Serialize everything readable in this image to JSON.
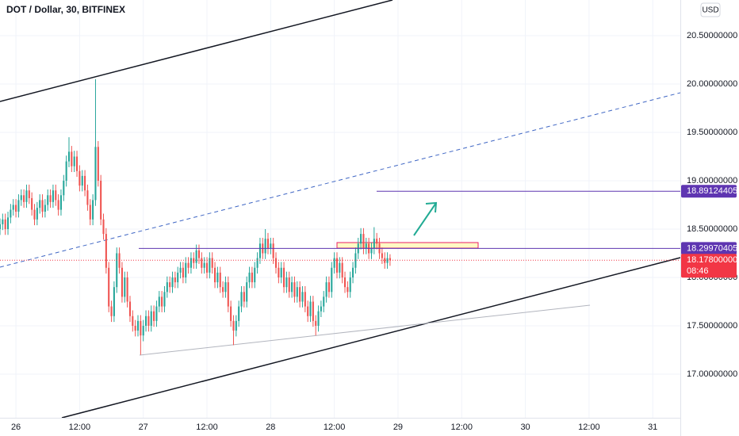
{
  "chart_data": {
    "type": "candlestick",
    "title": "DOT / Dollar, 30, BITFINEX",
    "currency": "USD",
    "countdown": "08:46",
    "up_color": "#26a69a",
    "down_color": "#ef5350",
    "grid": true,
    "xlim": [
      0,
      256.4
    ],
    "ylim": [
      16.549,
      20.869
    ],
    "xticks": [
      {
        "value": 6,
        "label": "26"
      },
      {
        "value": 30,
        "label": "12:00"
      },
      {
        "value": 54,
        "label": "27"
      },
      {
        "value": 78,
        "label": "12:00"
      },
      {
        "value": 102,
        "label": "28"
      },
      {
        "value": 126,
        "label": "12:00"
      },
      {
        "value": 150,
        "label": "29"
      },
      {
        "value": 174,
        "label": "12:00"
      },
      {
        "value": 198,
        "label": "30"
      },
      {
        "value": 222,
        "label": "12:00"
      },
      {
        "value": 246,
        "label": "31"
      }
    ],
    "yticks": [
      {
        "value": 17,
        "label": "17.00000000"
      },
      {
        "value": 17.5,
        "label": "17.50000000"
      },
      {
        "value": 18,
        "label": "18.00000000"
      },
      {
        "value": 18.5,
        "label": "18.50000000"
      },
      {
        "value": 19,
        "label": "19.00000000"
      },
      {
        "value": 19.5,
        "label": "19.50000000"
      },
      {
        "value": 20,
        "label": "20.00000000"
      },
      {
        "value": 20.5,
        "label": "20.50000000"
      }
    ],
    "price_labels": [
      {
        "value": 18.89124405,
        "color": "#5e35b1"
      },
      {
        "value": 18.29970405,
        "color": "#5e35b1"
      },
      {
        "value": 18.178,
        "label": "18.17800000",
        "color": "#f23645"
      }
    ],
    "x": [
      0,
      1,
      2,
      3,
      4,
      5,
      6,
      7,
      8,
      9,
      10,
      11,
      12,
      13,
      14,
      15,
      16,
      17,
      18,
      19,
      20,
      21,
      22,
      23,
      24,
      25,
      26,
      27,
      28,
      29,
      30,
      31,
      32,
      33,
      34,
      35,
      36,
      37,
      38,
      39,
      40,
      41,
      42,
      43,
      44,
      45,
      46,
      47,
      48,
      49,
      50,
      51,
      52,
      53,
      54,
      55,
      56,
      57,
      58,
      59,
      60,
      61,
      62,
      63,
      64,
      65,
      66,
      67,
      68,
      69,
      70,
      71,
      72,
      73,
      74,
      75,
      76,
      77,
      78,
      79,
      80,
      81,
      82,
      83,
      84,
      85,
      86,
      87,
      88,
      89,
      90,
      91,
      92,
      93,
      94,
      95,
      96,
      97,
      98,
      99,
      100,
      101,
      102,
      103,
      104,
      105,
      106,
      107,
      108,
      109,
      110,
      111,
      112,
      113,
      114,
      115,
      116,
      117,
      118,
      119,
      120,
      121,
      122,
      123,
      124,
      125,
      126,
      127,
      128,
      129,
      130,
      131,
      132,
      133,
      134,
      135,
      136,
      137,
      138,
      139,
      140,
      141,
      142,
      143,
      144,
      145,
      146,
      147
    ],
    "open": [
      18.5,
      18.55,
      18.6,
      18.5,
      18.62,
      18.7,
      18.75,
      18.68,
      18.8,
      18.85,
      18.78,
      18.9,
      18.82,
      18.7,
      18.6,
      18.72,
      18.8,
      18.68,
      18.75,
      18.85,
      18.78,
      18.9,
      18.8,
      18.7,
      18.85,
      19.0,
      19.2,
      19.3,
      19.15,
      19.25,
      19.1,
      18.95,
      19.05,
      18.9,
      18.75,
      18.6,
      18.8,
      19.35,
      19.0,
      18.6,
      18.45,
      18.1,
      17.7,
      17.6,
      17.9,
      18.25,
      18.1,
      17.8,
      18.0,
      17.75,
      17.6,
      17.5,
      17.45,
      17.55,
      17.4,
      17.5,
      17.6,
      17.5,
      17.65,
      17.55,
      17.7,
      17.8,
      17.7,
      17.85,
      17.95,
      17.9,
      18.0,
      17.95,
      18.05,
      18.1,
      18.0,
      18.15,
      18.1,
      18.2,
      18.15,
      18.28,
      18.2,
      18.1,
      18.15,
      18.05,
      18.2,
      18.1,
      17.95,
      18.05,
      17.9,
      17.85,
      17.95,
      17.7,
      17.55,
      17.45,
      17.55,
      17.7,
      17.85,
      17.75,
      17.95,
      18.05,
      17.95,
      18.1,
      18.2,
      18.35,
      18.25,
      18.4,
      18.3,
      18.35,
      18.2,
      18.1,
      18.0,
      18.1,
      17.9,
      18.0,
      17.85,
      17.95,
      17.8,
      17.9,
      17.75,
      17.85,
      17.7,
      17.6,
      17.75,
      17.55,
      17.5,
      17.65,
      17.7,
      17.8,
      17.95,
      17.85,
      18.1,
      18.2,
      18.05,
      18.15,
      18.0,
      17.9,
      17.85,
      18.0,
      18.1,
      18.25,
      18.35,
      18.45,
      18.3,
      18.35,
      18.25,
      18.3,
      18.4,
      18.35,
      18.25,
      18.2,
      18.15,
      18.2
    ],
    "high": [
      18.61,
      18.66,
      18.66,
      18.68,
      18.76,
      18.81,
      18.81,
      18.86,
      18.91,
      18.91,
      18.96,
      18.96,
      18.88,
      18.76,
      18.78,
      18.86,
      18.86,
      18.81,
      18.91,
      18.91,
      18.96,
      18.96,
      18.86,
      18.91,
      19.06,
      19.26,
      19.45,
      19.36,
      19.31,
      19.31,
      19.16,
      19.11,
      19.11,
      18.96,
      18.81,
      18.86,
      20.05,
      19.41,
      19.06,
      18.66,
      18.51,
      18.16,
      17.76,
      17.96,
      18.31,
      18.31,
      18.16,
      18.06,
      18.06,
      17.81,
      17.66,
      17.56,
      17.61,
      17.61,
      17.56,
      17.66,
      17.66,
      17.71,
      17.71,
      17.76,
      17.86,
      17.86,
      17.91,
      18.01,
      18.01,
      18.06,
      18.06,
      18.11,
      18.16,
      18.16,
      18.21,
      18.21,
      18.26,
      18.26,
      18.34,
      18.34,
      18.26,
      18.21,
      18.21,
      18.26,
      18.26,
      18.16,
      18.11,
      18.11,
      17.96,
      18.01,
      18.01,
      17.76,
      17.61,
      17.61,
      17.76,
      17.91,
      17.91,
      18.01,
      18.11,
      18.11,
      18.16,
      18.26,
      18.41,
      18.41,
      18.5,
      18.46,
      18.41,
      18.41,
      18.26,
      18.16,
      18.16,
      18.16,
      18.06,
      18.06,
      18.01,
      18.01,
      17.96,
      17.96,
      17.91,
      17.91,
      17.76,
      17.81,
      17.81,
      17.61,
      17.71,
      17.76,
      17.86,
      18.01,
      18.01,
      18.16,
      18.26,
      18.26,
      18.21,
      18.21,
      18.06,
      17.96,
      18.06,
      18.16,
      18.31,
      18.41,
      18.51,
      18.51,
      18.41,
      18.41,
      18.36,
      18.52,
      18.46,
      18.41,
      18.31,
      18.26,
      18.26,
      18.24
    ],
    "low": [
      18.44,
      18.49,
      18.44,
      18.44,
      18.56,
      18.64,
      18.62,
      18.62,
      18.74,
      18.72,
      18.72,
      18.76,
      18.64,
      18.54,
      18.54,
      18.66,
      18.62,
      18.62,
      18.69,
      18.72,
      18.72,
      18.74,
      18.64,
      18.64,
      18.79,
      18.94,
      19.14,
      19.09,
      19.09,
      19.04,
      18.89,
      18.89,
      18.84,
      18.69,
      18.54,
      18.54,
      18.74,
      18.94,
      18.54,
      18.39,
      18.04,
      17.64,
      17.54,
      17.54,
      17.84,
      18.04,
      17.74,
      17.74,
      17.69,
      17.54,
      17.44,
      17.39,
      17.39,
      17.2,
      17.34,
      17.44,
      17.44,
      17.44,
      17.49,
      17.49,
      17.64,
      17.64,
      17.64,
      17.79,
      17.84,
      17.84,
      17.89,
      17.89,
      17.99,
      17.94,
      17.94,
      18.04,
      18.04,
      18.09,
      18.09,
      18.14,
      18.04,
      18.04,
      17.99,
      17.99,
      18.04,
      17.89,
      17.89,
      17.84,
      17.79,
      17.79,
      17.64,
      17.49,
      17.3,
      17.39,
      17.49,
      17.64,
      17.69,
      17.69,
      17.89,
      17.89,
      17.89,
      18.04,
      18.14,
      18.19,
      18.19,
      18.24,
      18.24,
      18.14,
      18.04,
      17.94,
      17.94,
      17.84,
      17.84,
      17.79,
      17.79,
      17.74,
      17.74,
      17.69,
      17.69,
      17.64,
      17.54,
      17.54,
      17.49,
      17.4,
      17.44,
      17.59,
      17.64,
      17.74,
      17.79,
      17.79,
      18.04,
      17.99,
      17.99,
      17.94,
      17.84,
      17.79,
      17.79,
      17.94,
      18.04,
      18.19,
      18.29,
      18.24,
      18.24,
      18.19,
      18.19,
      18.24,
      18.29,
      18.19,
      18.14,
      18.09,
      18.09,
      18.12
    ],
    "close": [
      18.55,
      18.6,
      18.5,
      18.62,
      18.7,
      18.75,
      18.68,
      18.8,
      18.85,
      18.78,
      18.9,
      18.82,
      18.7,
      18.6,
      18.72,
      18.8,
      18.68,
      18.75,
      18.85,
      18.78,
      18.9,
      18.8,
      18.7,
      18.85,
      19.0,
      19.2,
      19.3,
      19.15,
      19.25,
      19.1,
      18.95,
      19.05,
      18.9,
      18.75,
      18.6,
      18.8,
      19.35,
      19.0,
      18.6,
      18.45,
      18.1,
      17.7,
      17.6,
      17.9,
      18.25,
      18.1,
      17.8,
      18.0,
      17.75,
      17.6,
      17.5,
      17.45,
      17.55,
      17.4,
      17.5,
      17.6,
      17.5,
      17.65,
      17.55,
      17.7,
      17.8,
      17.7,
      17.85,
      17.95,
      17.9,
      18.0,
      17.95,
      18.05,
      18.1,
      18.0,
      18.15,
      18.1,
      18.2,
      18.15,
      18.28,
      18.2,
      18.1,
      18.15,
      18.05,
      18.2,
      18.1,
      17.95,
      18.05,
      17.9,
      17.85,
      17.95,
      17.7,
      17.55,
      17.45,
      17.55,
      17.7,
      17.85,
      17.75,
      17.95,
      18.05,
      17.95,
      18.1,
      18.2,
      18.35,
      18.25,
      18.4,
      18.3,
      18.35,
      18.2,
      18.1,
      18.0,
      18.1,
      17.9,
      18.0,
      17.85,
      17.95,
      17.8,
      17.9,
      17.75,
      17.85,
      17.7,
      17.6,
      17.75,
      17.55,
      17.5,
      17.65,
      17.7,
      17.8,
      17.95,
      17.85,
      18.1,
      18.2,
      18.05,
      18.15,
      18.0,
      17.9,
      17.85,
      18.0,
      18.1,
      18.25,
      18.35,
      18.45,
      18.3,
      18.35,
      18.25,
      18.3,
      18.4,
      18.35,
      18.25,
      18.2,
      18.15,
      18.2,
      18.178
    ]
  }
}
